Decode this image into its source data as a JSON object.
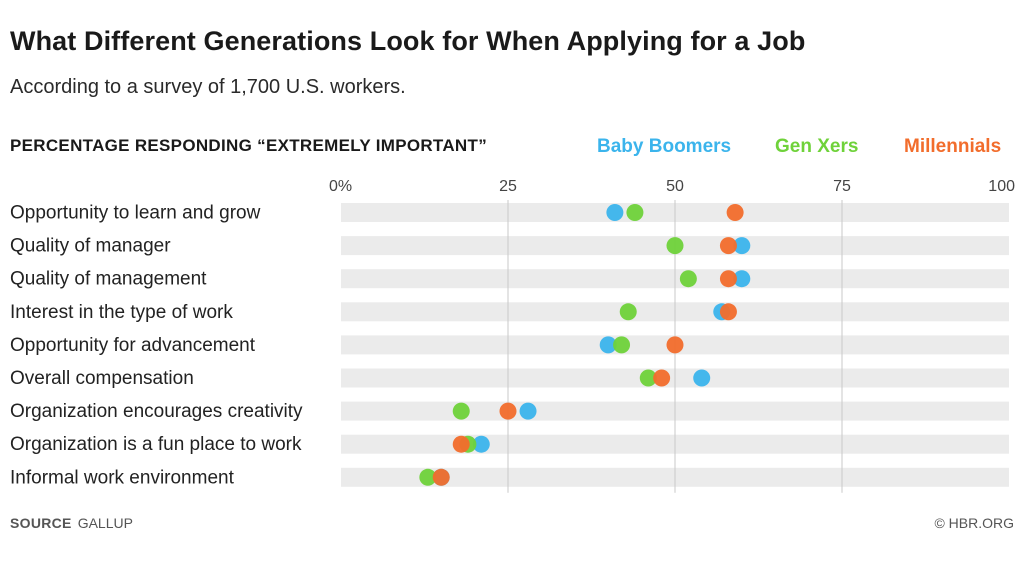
{
  "header": {
    "title": "What Different Generations Look for When Applying for a Job",
    "subtitle": "According to a survey of 1,700 U.S. workers."
  },
  "chart_label": "PERCENTAGE RESPONDING “EXTREMELY IMPORTANT”",
  "footer": {
    "source_key": "SOURCE",
    "source_value": "GALLUP",
    "credit": "© HBR.ORG"
  },
  "colors": {
    "Baby Boomers": "#3bb4ec",
    "Gen Xers": "#6fd23a",
    "Millennials": "#f26d2c",
    "row_band": "#ebebeb",
    "gridline": "#c8c8c8"
  },
  "chart_data": {
    "type": "scatter",
    "title": "What Different Generations Look for When Applying for a Job",
    "subtitle": "According to a survey of 1,700 U.S. workers.",
    "ylabel": "PERCENTAGE RESPONDING “EXTREMELY IMPORTANT”",
    "xlim": [
      0,
      100
    ],
    "x_ticks": [
      0,
      25,
      50,
      75,
      100
    ],
    "x_tick_labels": [
      "0%",
      "25",
      "50",
      "75",
      "100"
    ],
    "grid": true,
    "legend_position": "top-right",
    "categories": [
      "Opportunity to learn and grow",
      "Quality of manager",
      "Quality of management",
      "Interest in the type of work",
      "Opportunity for advancement",
      "Overall compensation",
      "Organization encourages creativity",
      "Organization is a fun place to work",
      "Informal work environment"
    ],
    "series": [
      {
        "name": "Baby Boomers",
        "values": [
          41,
          60,
          60,
          57,
          40,
          54,
          28,
          21,
          15
        ]
      },
      {
        "name": "Gen Xers",
        "values": [
          44,
          50,
          52,
          43,
          42,
          46,
          18,
          19,
          13
        ]
      },
      {
        "name": "Millennials",
        "values": [
          59,
          58,
          58,
          58,
          50,
          48,
          25,
          18,
          15
        ]
      }
    ]
  }
}
